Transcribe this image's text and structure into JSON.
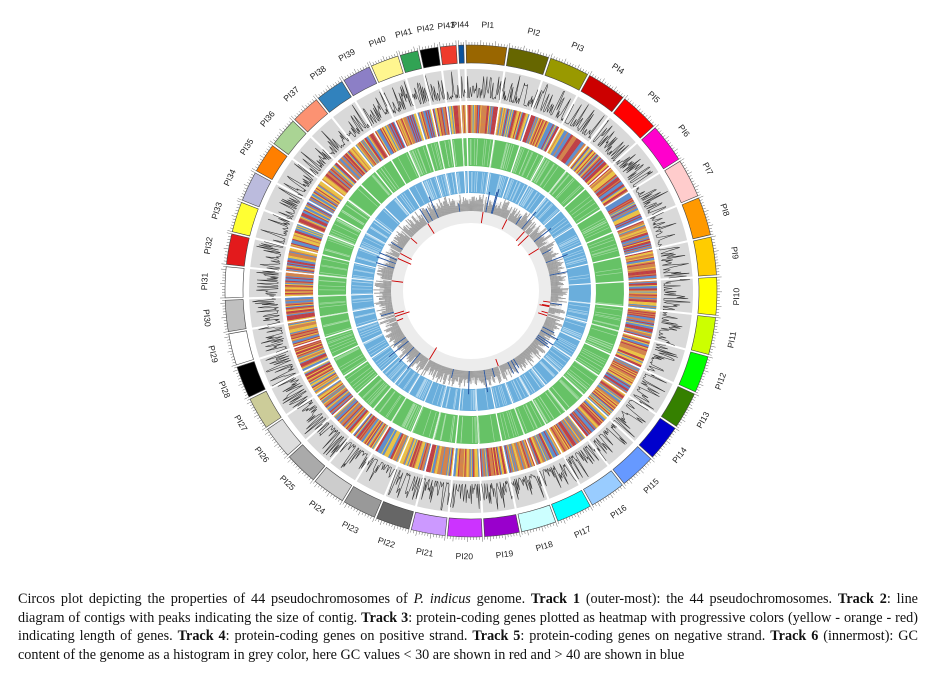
{
  "figure": {
    "type": "circos",
    "chromosomes": [
      {
        "label": "PI1",
        "color": "#996600"
      },
      {
        "label": "PI2",
        "color": "#666600"
      },
      {
        "label": "PI3",
        "color": "#999900"
      },
      {
        "label": "PI4",
        "color": "#cc0000"
      },
      {
        "label": "PI5",
        "color": "#ff0000"
      },
      {
        "label": "PI6",
        "color": "#ff00cc"
      },
      {
        "label": "PI7",
        "color": "#ffcccc"
      },
      {
        "label": "PI8",
        "color": "#ff9900"
      },
      {
        "label": "PI9",
        "color": "#ffcc00"
      },
      {
        "label": "PI10",
        "color": "#ffff00"
      },
      {
        "label": "PI11",
        "color": "#ccff00"
      },
      {
        "label": "PI12",
        "color": "#00ff00"
      },
      {
        "label": "PI13",
        "color": "#358000"
      },
      {
        "label": "PI14",
        "color": "#0000cc"
      },
      {
        "label": "PI15",
        "color": "#6699ff"
      },
      {
        "label": "PI16",
        "color": "#99ccff"
      },
      {
        "label": "PI17",
        "color": "#00ffff"
      },
      {
        "label": "PI18",
        "color": "#ccffff"
      },
      {
        "label": "PI19",
        "color": "#9900cc"
      },
      {
        "label": "PI20",
        "color": "#cc33ff"
      },
      {
        "label": "PI21",
        "color": "#cc99ff"
      },
      {
        "label": "PI22",
        "color": "#666666"
      },
      {
        "label": "PI23",
        "color": "#999999"
      },
      {
        "label": "PI24",
        "color": "#cccccc"
      },
      {
        "label": "PI25",
        "color": "#aaaaaa"
      },
      {
        "label": "PI26",
        "color": "#dddddd"
      },
      {
        "label": "PI27",
        "color": "#cccc99"
      },
      {
        "label": "PI28",
        "color": "#000000"
      },
      {
        "label": "PI29",
        "color": "#ffffff"
      },
      {
        "label": "PI30",
        "color": "#c0c0c0"
      },
      {
        "label": "PI31",
        "color": "#ffffff"
      },
      {
        "label": "PI32",
        "color": "#e31a1c"
      },
      {
        "label": "PI33",
        "color": "#ffff33"
      },
      {
        "label": "PI34",
        "color": "#bbbbdd"
      },
      {
        "label": "PI35",
        "color": "#ff7f00"
      },
      {
        "label": "PI36",
        "color": "#aad494"
      },
      {
        "label": "PI37",
        "color": "#fc9272"
      },
      {
        "label": "PI38",
        "color": "#3182bd"
      },
      {
        "label": "PI39",
        "color": "#8c7fc6"
      },
      {
        "label": "PI40",
        "color": "#fff68f"
      },
      {
        "label": "PI41",
        "color": "#31a354"
      },
      {
        "label": "PI42",
        "color": "#000000"
      },
      {
        "label": "PI43",
        "color": "#ef3b2c"
      },
      {
        "label": "PI44",
        "color": "#08519c"
      }
    ],
    "track_colors": {
      "contig_bg": "#d9d9d9",
      "contig_line": "#333333",
      "heatmap": [
        "#ffcc33",
        "#e3823a",
        "#cc3333",
        "#5b8fd1"
      ],
      "positive_strand": "#66c266",
      "negative_strand": "#6aaedc",
      "gc_bg": "#ececec",
      "gc_bar": "#9a9a9a",
      "gc_low": "#cc0000",
      "gc_high": "#1f4e9c"
    }
  },
  "caption": {
    "p1": "Circos plot depicting the properties of 44 pseudochromosomes of ",
    "species": "P. indicus",
    "p2": " genome. ",
    "t1": "Track 1",
    "t1_text": " (outer-most): the 44 pseudochromosomes. ",
    "t2": "Track 2",
    "t2_text": ": line diagram of contigs with peaks indicating the size of contig. ",
    "t3": "Track 3",
    "t3_text": ": protein-coding genes plotted as heatmap with progressive colors (yellow - orange - red) indicating length of genes. ",
    "t4": "Track 4",
    "t4_text": ": protein-coding genes on positive strand. ",
    "t5": "Track 5",
    "t5_text": ": protein-coding genes on negative strand. ",
    "t6": "Track 6",
    "t6_text": " (innermost): GC content of the genome as a histogram in grey color, here GC values < 30 are shown in red and > 40 are shown in blue"
  }
}
